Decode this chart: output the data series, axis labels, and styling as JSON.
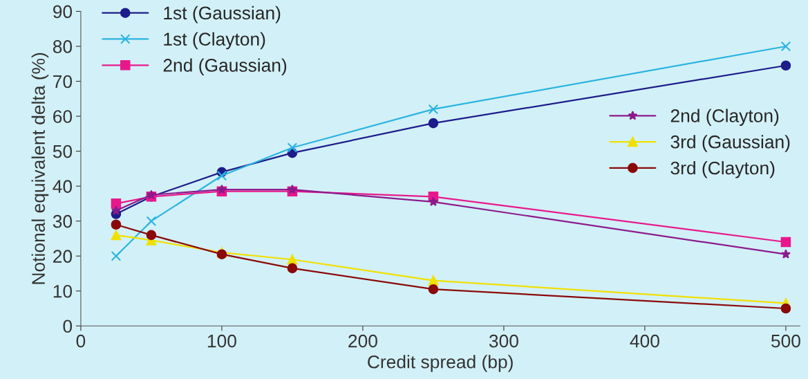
{
  "chart_data": {
    "type": "line",
    "xlabel": "Credit spread (bp)",
    "ylabel": "Notional equivalent delta (%)",
    "x": [
      25,
      50,
      100,
      150,
      250,
      500
    ],
    "xlim": [
      0,
      510
    ],
    "xticks": [
      0,
      100,
      200,
      300,
      400,
      500
    ],
    "ylim": [
      0,
      90
    ],
    "yticks": [
      0,
      10,
      20,
      30,
      40,
      50,
      60,
      70,
      80,
      90
    ],
    "grid": false,
    "legend": "top left",
    "line_style": "solid",
    "series": [
      {
        "name": "1st (Gaussian)",
        "color": "#1c1c8a",
        "marker": "circle",
        "values": [
          32,
          37,
          44,
          49.5,
          58,
          74.5
        ]
      },
      {
        "name": "1st (Clayton)",
        "color": "#2ab4e0",
        "marker": "cross",
        "values": [
          20,
          30,
          43,
          51,
          62,
          80
        ]
      },
      {
        "name": "2nd (Gaussian)",
        "color": "#e8188c",
        "marker": "square",
        "values": [
          35,
          37,
          38.5,
          38.5,
          37,
          24
        ]
      },
      {
        "name": "2nd (Clayton)",
        "color": "#8c1a8c",
        "marker": "star",
        "values": [
          33,
          37.5,
          39,
          39,
          35.5,
          20.5
        ]
      },
      {
        "name": "3rd (Gaussian)",
        "color": "#f0e000",
        "marker": "triangle",
        "values": [
          26,
          24.5,
          21,
          19,
          13,
          6.5
        ]
      },
      {
        "name": "3rd (Clayton)",
        "color": "#8a0a0a",
        "marker": "circle",
        "values": [
          29,
          26,
          20.5,
          16.5,
          10.5,
          5
        ]
      }
    ]
  }
}
